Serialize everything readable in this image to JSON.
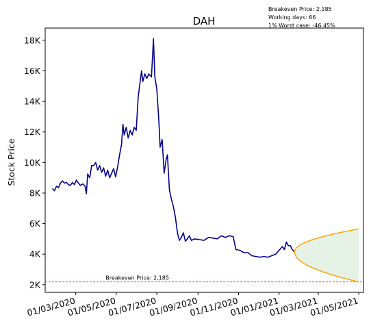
{
  "chart_data": {
    "type": "line",
    "title": "DAH",
    "xlabel": "",
    "ylabel": "Stock Price",
    "x_range": [
      "2020-01-15",
      "2021-05-08"
    ],
    "ylim": [
      1500,
      18800
    ],
    "y_ticks": [
      2000,
      4000,
      6000,
      8000,
      10000,
      12000,
      14000,
      16000,
      18000
    ],
    "y_tick_labels": [
      "2K",
      "4K",
      "6K",
      "8K",
      "10K",
      "12K",
      "14K",
      "16K",
      "18K"
    ],
    "x_ticks": [
      "2020-03-01",
      "2020-05-01",
      "2020-07-01",
      "2020-09-01",
      "2020-11-01",
      "2021-01-01",
      "2021-03-01",
      "2021-05-01"
    ],
    "x_tick_labels": [
      "01/03/2020",
      "01/05/2020",
      "01/07/2020",
      "01/09/2020",
      "01/11/2020",
      "01/01/2021",
      "01/03/2021",
      "01/05/2021"
    ],
    "info_lines": [
      "Breakeven Price: 2,185",
      "Working days: 66",
      "1% Worst case: -46.45%"
    ],
    "breakeven": {
      "value": 2185,
      "label": "Breakeven Price: 2,185",
      "label_date": "2020-04-15",
      "color": "#d62728"
    },
    "series": [
      {
        "name": "price",
        "color": "#00008b",
        "points": [
          [
            "2020-01-26",
            8300
          ],
          [
            "2020-01-29",
            8150
          ],
          [
            "2020-02-01",
            8450
          ],
          [
            "2020-02-04",
            8350
          ],
          [
            "2020-02-07",
            8650
          ],
          [
            "2020-02-10",
            8800
          ],
          [
            "2020-02-13",
            8650
          ],
          [
            "2020-02-16",
            8700
          ],
          [
            "2020-02-19",
            8550
          ],
          [
            "2020-02-22",
            8500
          ],
          [
            "2020-02-25",
            8700
          ],
          [
            "2020-02-28",
            8550
          ],
          [
            "2020-03-02",
            8850
          ],
          [
            "2020-03-05",
            8650
          ],
          [
            "2020-03-08",
            8500
          ],
          [
            "2020-03-12",
            8600
          ],
          [
            "2020-03-15",
            8450
          ],
          [
            "2020-03-17",
            7950
          ],
          [
            "2020-03-19",
            9250
          ],
          [
            "2020-03-22",
            9000
          ],
          [
            "2020-03-25",
            9800
          ],
          [
            "2020-03-28",
            9800
          ],
          [
            "2020-03-31",
            10000
          ],
          [
            "2020-04-03",
            9500
          ],
          [
            "2020-04-06",
            9800
          ],
          [
            "2020-04-09",
            9350
          ],
          [
            "2020-04-12",
            9650
          ],
          [
            "2020-04-15",
            9100
          ],
          [
            "2020-04-18",
            9500
          ],
          [
            "2020-04-21",
            9000
          ],
          [
            "2020-04-24",
            9300
          ],
          [
            "2020-04-27",
            9600
          ],
          [
            "2020-04-30",
            9050
          ],
          [
            "2020-05-03",
            9700
          ],
          [
            "2020-05-06",
            10500
          ],
          [
            "2020-05-09",
            11200
          ],
          [
            "2020-05-11",
            12500
          ],
          [
            "2020-05-13",
            11800
          ],
          [
            "2020-05-16",
            12300
          ],
          [
            "2020-05-19",
            11600
          ],
          [
            "2020-05-22",
            12100
          ],
          [
            "2020-05-25",
            11800
          ],
          [
            "2020-05-28",
            12300
          ],
          [
            "2020-05-31",
            12100
          ],
          [
            "2020-06-03",
            14300
          ],
          [
            "2020-06-06",
            15300
          ],
          [
            "2020-06-08",
            16000
          ],
          [
            "2020-06-10",
            15300
          ],
          [
            "2020-06-13",
            15800
          ],
          [
            "2020-06-16",
            15500
          ],
          [
            "2020-06-19",
            15800
          ],
          [
            "2020-06-23",
            15600
          ],
          [
            "2020-06-26",
            18100
          ],
          [
            "2020-06-28",
            15600
          ],
          [
            "2020-07-01",
            14800
          ],
          [
            "2020-07-04",
            12800
          ],
          [
            "2020-07-06",
            11000
          ],
          [
            "2020-07-09",
            11500
          ],
          [
            "2020-07-12",
            9300
          ],
          [
            "2020-07-15",
            10200
          ],
          [
            "2020-07-17",
            10500
          ],
          [
            "2020-07-20",
            8200
          ],
          [
            "2020-07-23",
            7600
          ],
          [
            "2020-07-26",
            7100
          ],
          [
            "2020-07-29",
            6400
          ],
          [
            "2020-08-01",
            5400
          ],
          [
            "2020-08-04",
            4900
          ],
          [
            "2020-08-07",
            5100
          ],
          [
            "2020-08-10",
            5400
          ],
          [
            "2020-08-13",
            4850
          ],
          [
            "2020-08-16",
            5000
          ],
          [
            "2020-08-19",
            5200
          ],
          [
            "2020-08-22",
            4900
          ],
          [
            "2020-08-27",
            5000
          ],
          [
            "2020-09-03",
            4950
          ],
          [
            "2020-09-10",
            4900
          ],
          [
            "2020-09-17",
            5100
          ],
          [
            "2020-09-24",
            5050
          ],
          [
            "2020-09-30",
            5000
          ],
          [
            "2020-10-06",
            5200
          ],
          [
            "2020-10-12",
            5100
          ],
          [
            "2020-10-18",
            5200
          ],
          [
            "2020-10-24",
            5150
          ],
          [
            "2020-10-28",
            4300
          ],
          [
            "2020-11-03",
            4250
          ],
          [
            "2020-11-09",
            4100
          ],
          [
            "2020-11-15",
            4100
          ],
          [
            "2020-11-21",
            3900
          ],
          [
            "2020-11-27",
            3850
          ],
          [
            "2020-12-03",
            3800
          ],
          [
            "2020-12-09",
            3850
          ],
          [
            "2020-12-15",
            3800
          ],
          [
            "2020-12-21",
            3900
          ],
          [
            "2020-12-27",
            4000
          ],
          [
            "2021-01-02",
            4300
          ],
          [
            "2021-01-06",
            4500
          ],
          [
            "2021-01-09",
            4300
          ],
          [
            "2021-01-12",
            4800
          ],
          [
            "2021-01-15",
            4550
          ],
          [
            "2021-01-18",
            4550
          ],
          [
            "2021-01-21",
            4300
          ],
          [
            "2021-01-24",
            4150
          ]
        ]
      }
    ],
    "projection": {
      "start_date": "2021-01-24",
      "end_date": "2021-05-01",
      "start_value": 4150,
      "upper_end": 5650,
      "lower_end": 2185,
      "line_color": "#ffa500",
      "fill_color": "#cfe7cf"
    }
  }
}
